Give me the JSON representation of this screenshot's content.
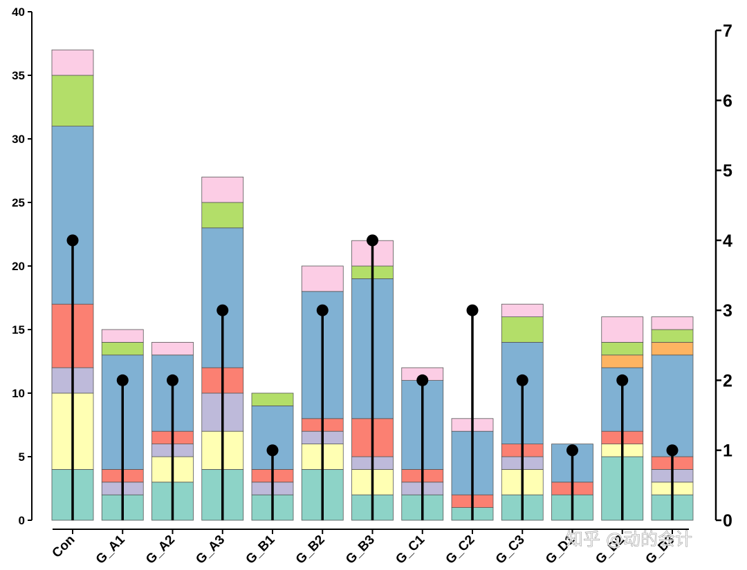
{
  "chart_data": {
    "type": "bar",
    "subtype": "stacked bar with lollipop overlay on secondary axis",
    "categories": [
      "Con",
      "G_A1",
      "G_A2",
      "G_A3",
      "G_B1",
      "G_B2",
      "G_B3",
      "G_C1",
      "G_C2",
      "G_C3",
      "G_D1",
      "G_D2",
      "G_D3"
    ],
    "tick_labels": [
      "Con",
      "G_A1",
      "G_A2",
      "G_A3",
      "G_B1",
      "G_B2",
      "G_B3",
      "G_C1",
      "G_C2",
      "G_C3",
      "G_D1",
      "G_D2",
      "G_D3"
    ],
    "series": [
      {
        "color": "#8DD3C7",
        "values": [
          4,
          2,
          3,
          4,
          2,
          4,
          2,
          2,
          1,
          2,
          2,
          5,
          2
        ]
      },
      {
        "color": "#FFFFB3",
        "values": [
          6,
          0,
          2,
          3,
          0,
          2,
          2,
          0,
          0,
          2,
          0,
          1,
          1
        ]
      },
      {
        "color": "#BEBADA",
        "values": [
          2,
          1,
          1,
          3,
          1,
          1,
          1,
          1,
          0,
          1,
          0,
          0,
          1
        ]
      },
      {
        "color": "#FB8072",
        "values": [
          5,
          1,
          1,
          2,
          1,
          1,
          3,
          1,
          1,
          1,
          1,
          1,
          1
        ]
      },
      {
        "color": "#80B1D3",
        "values": [
          14,
          9,
          6,
          11,
          5,
          10,
          11,
          7,
          5,
          8,
          3,
          5,
          8
        ]
      },
      {
        "color": "#FDB462",
        "values": [
          0,
          0,
          0,
          0,
          0,
          0,
          0,
          0,
          0,
          0,
          0,
          1,
          1
        ]
      },
      {
        "color": "#B3DE69",
        "values": [
          4,
          1,
          0,
          2,
          1,
          0,
          1,
          0,
          0,
          2,
          0,
          1,
          1
        ]
      },
      {
        "color": "#FCCDE5",
        "values": [
          2,
          1,
          1,
          2,
          0,
          2,
          2,
          1,
          1,
          1,
          0,
          2,
          1
        ]
      }
    ],
    "secondary_series": {
      "type": "lollipop",
      "axis": "right",
      "values": [
        4,
        2,
        2,
        3,
        1,
        3,
        4,
        2,
        3,
        2,
        1,
        2,
        1
      ]
    },
    "y_left": {
      "range": [
        0,
        40
      ],
      "ticks": [
        0,
        5,
        10,
        15,
        20,
        25,
        30,
        35,
        40
      ],
      "label": ""
    },
    "y_right": {
      "range": [
        0,
        7
      ],
      "ticks": [
        0,
        1,
        2,
        3,
        4,
        5,
        6,
        7
      ],
      "label": ""
    },
    "xlabel": "",
    "title": "",
    "grid": false,
    "legend": "none"
  },
  "watermark": "知乎 @动的会计"
}
